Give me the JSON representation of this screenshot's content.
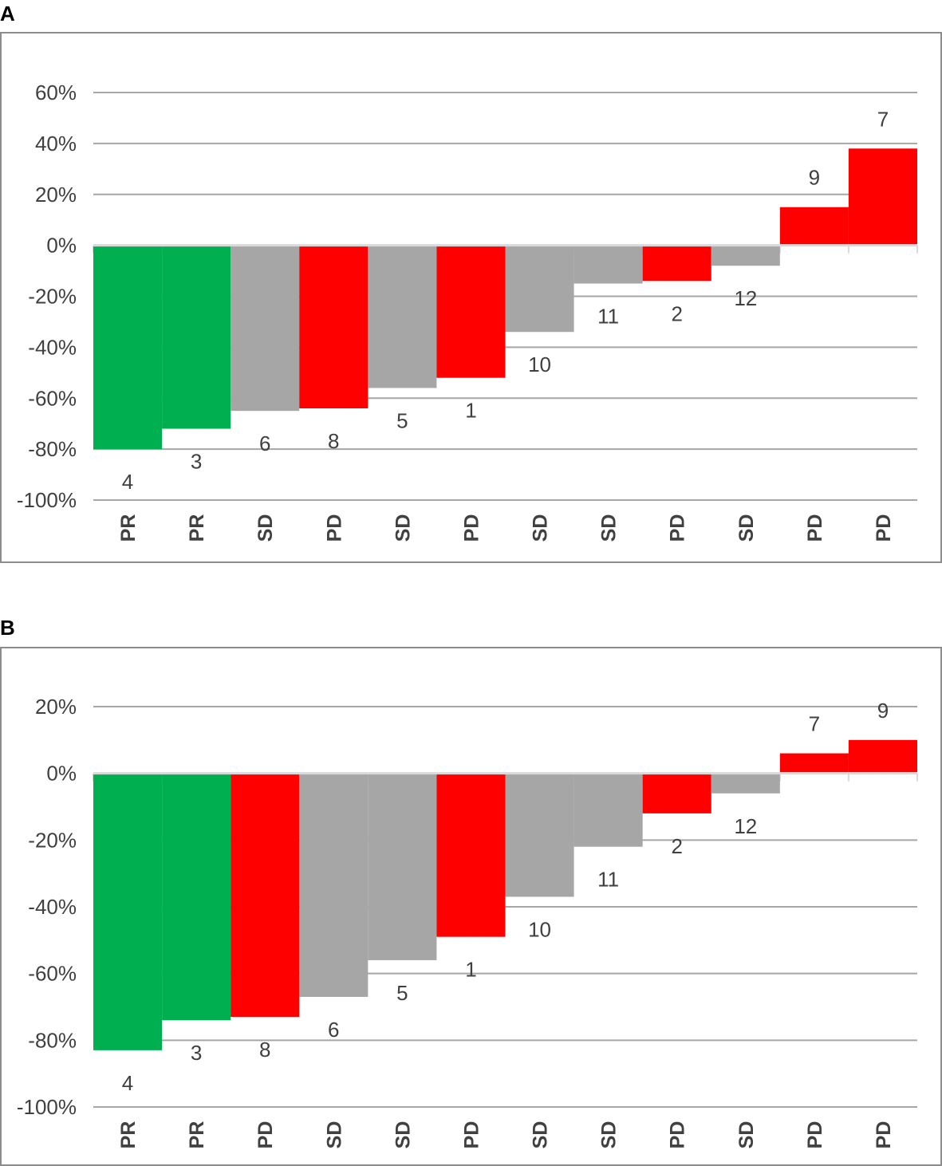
{
  "panels": [
    {
      "letter": "A"
    },
    {
      "letter": "B"
    }
  ],
  "colors": {
    "PR": "#00b050",
    "SD": "#a6a6a6",
    "PD": "#ff0000",
    "grid": "#a6a6a6",
    "text": "#404040"
  },
  "chart_data": [
    {
      "type": "bar",
      "panel": "A",
      "categories": [
        "PR",
        "PR",
        "SD",
        "PD",
        "SD",
        "PD",
        "SD",
        "SD",
        "PD",
        "SD",
        "PD",
        "PD"
      ],
      "data_labels": [
        "4",
        "3",
        "6",
        "8",
        "5",
        "1",
        "10",
        "11",
        "2",
        "12",
        "9",
        "7"
      ],
      "values": [
        -80,
        -72,
        -65,
        -64,
        -56,
        -52,
        -34,
        -15,
        -14,
        -8,
        15,
        38
      ],
      "unit": "%",
      "ylim": [
        -100,
        60
      ],
      "yticks": [
        "-100%",
        "-80%",
        "-60%",
        "-40%",
        "-20%",
        "0%",
        "20%",
        "40%",
        "60%"
      ],
      "ytick_values": [
        -100,
        -80,
        -60,
        -40,
        -20,
        0,
        20,
        40,
        60
      ],
      "grid": true,
      "title": "",
      "xlabel": "",
      "ylabel": ""
    },
    {
      "type": "bar",
      "panel": "B",
      "categories": [
        "PR",
        "PR",
        "PD",
        "SD",
        "SD",
        "PD",
        "SD",
        "SD",
        "PD",
        "SD",
        "PD",
        "PD"
      ],
      "data_labels": [
        "4",
        "3",
        "8",
        "6",
        "5",
        "1",
        "10",
        "11",
        "2",
        "12",
        "7",
        "9"
      ],
      "values": [
        -83,
        -74,
        -73,
        -67,
        -56,
        -49,
        -37,
        -22,
        -12,
        -6,
        6,
        10
      ],
      "unit": "%",
      "ylim": [
        -100,
        20
      ],
      "yticks": [
        "-100%",
        "-80%",
        "-60%",
        "-40%",
        "-20%",
        "0%",
        "20%"
      ],
      "ytick_values": [
        -100,
        -80,
        -60,
        -40,
        -20,
        0,
        20
      ],
      "grid": true,
      "title": "",
      "xlabel": "",
      "ylabel": ""
    }
  ]
}
